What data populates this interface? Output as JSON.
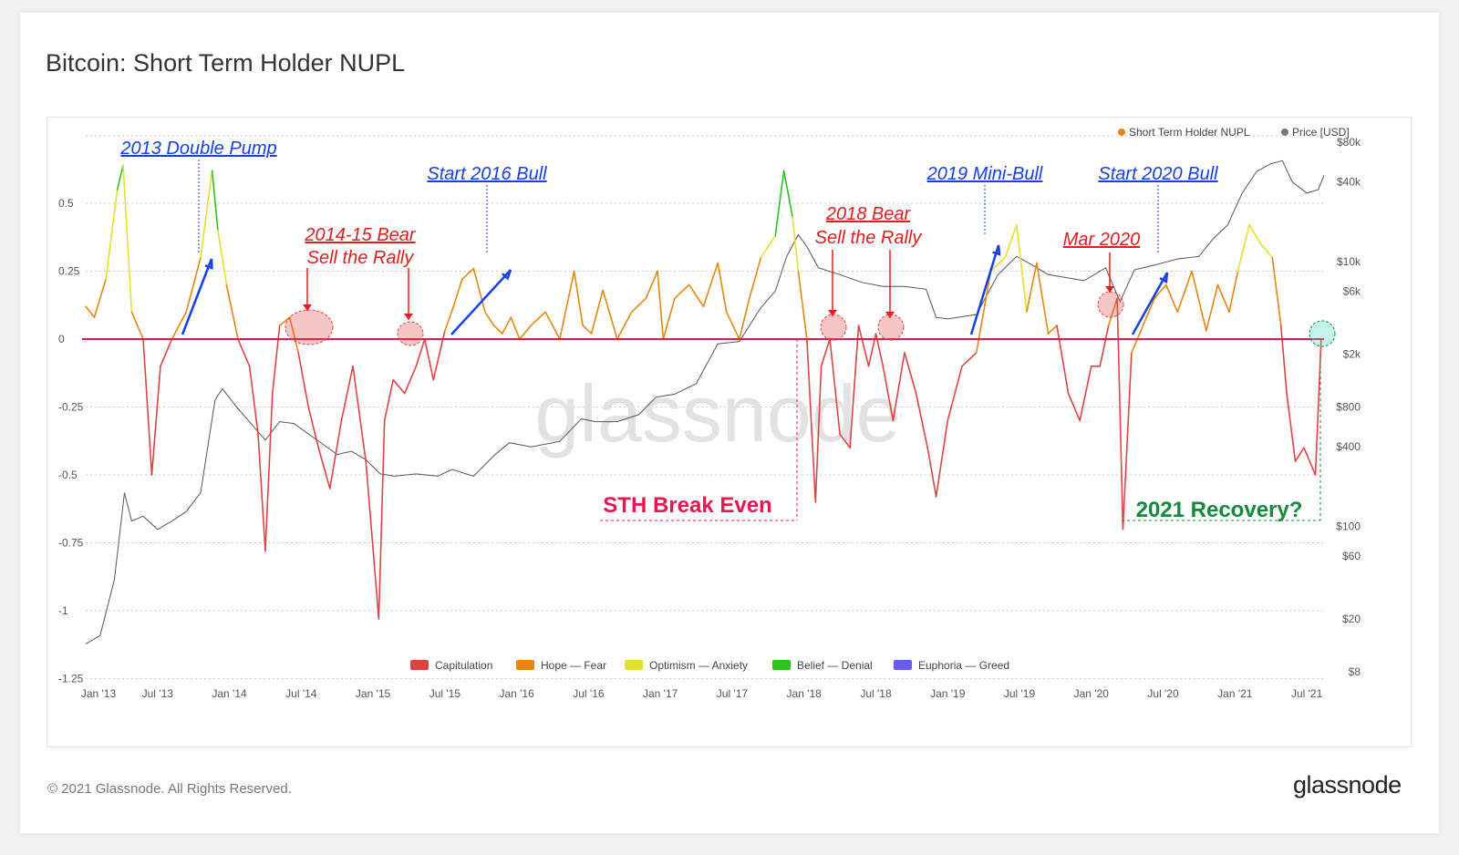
{
  "title": "Bitcoin: Short Term Holder NUPL",
  "footer": "© 2021 Glassnode. All Rights Reserved.",
  "brand": "glassnode",
  "watermark": "glassnode",
  "colors": {
    "capitulation": "#e04343",
    "hope_fear": "#e8870f",
    "optimism_anxiety": "#e2e22a",
    "belief_denial": "#2ec21d",
    "euphoria_greed": "#6a5cf0",
    "price": "#555555",
    "break_even": "#e8174f",
    "blue_annotation": "#1540e8",
    "red_annotation": "#e21d1d",
    "green_annotation": "#158a3c"
  },
  "chart_data": {
    "type": "line",
    "legend_top": [
      "Short Term Holder NUPL",
      "Price [USD]"
    ],
    "legend_bottom": [
      "Capitulation",
      "Hope — Fear",
      "Optimism — Anxiety",
      "Belief — Denial",
      "Euphoria — Greed"
    ],
    "x_ticks": [
      "Jan '13",
      "Jul '13",
      "Jan '14",
      "Jul '14",
      "Jan '15",
      "Jul '15",
      "Jan '16",
      "Jul '16",
      "Jan '17",
      "Jul '17",
      "Jan '18",
      "Jul '18",
      "Jan '19",
      "Jul '19",
      "Jan '20",
      "Jul '20",
      "Jan '21",
      "Jul '21"
    ],
    "y_left_ticks": [
      "0.5",
      "0.25",
      "0",
      "-0.25",
      "-0.5",
      "-0.75",
      "-1",
      "-1.25"
    ],
    "y_right_ticks": [
      "$80k",
      "$40k",
      "$10k",
      "$6k",
      "$2k",
      "$800",
      "$400",
      "$100",
      "$60",
      "$20",
      "$8"
    ],
    "ylim_left": [
      -1.25,
      0.7
    ],
    "ylim_right_log": [
      8,
      80000
    ],
    "x_range": [
      "2013-01",
      "2021-08"
    ],
    "series": [
      {
        "name": "Short Term Holder NUPL",
        "t": [
          2013.0,
          2013.06,
          2013.14,
          2013.22,
          2013.26,
          2013.32,
          2013.4,
          2013.46,
          2013.52,
          2013.6,
          2013.7,
          2013.8,
          2013.88,
          2013.92,
          2013.98,
          2014.06,
          2014.14,
          2014.2,
          2014.25,
          2014.3,
          2014.35,
          2014.42,
          2014.48,
          2014.55,
          2014.62,
          2014.7,
          2014.78,
          2014.86,
          2014.95,
          2015.04,
          2015.08,
          2015.14,
          2015.22,
          2015.3,
          2015.36,
          2015.42,
          2015.5,
          2015.56,
          2015.62,
          2015.7,
          2015.78,
          2015.84,
          2015.9,
          2015.96,
          2016.02,
          2016.1,
          2016.2,
          2016.3,
          2016.4,
          2016.46,
          2016.52,
          2016.6,
          2016.7,
          2016.8,
          2016.9,
          2016.98,
          2017.02,
          2017.1,
          2017.2,
          2017.3,
          2017.4,
          2017.46,
          2017.55,
          2017.62,
          2017.7,
          2017.8,
          2017.86,
          2017.92,
          2017.96,
          2018.02,
          2018.08,
          2018.12,
          2018.18,
          2018.25,
          2018.32,
          2018.38,
          2018.45,
          2018.5,
          2018.55,
          2018.62,
          2018.7,
          2018.78,
          2018.86,
          2018.92,
          2019.0,
          2019.1,
          2019.2,
          2019.3,
          2019.4,
          2019.48,
          2019.55,
          2019.62,
          2019.7,
          2019.76,
          2019.84,
          2019.92,
          2020.0,
          2020.06,
          2020.12,
          2020.18,
          2020.22,
          2020.28,
          2020.36,
          2020.44,
          2020.52,
          2020.6,
          2020.7,
          2020.8,
          2020.88,
          2020.96,
          2021.02,
          2021.1,
          2021.18,
          2021.26,
          2021.32,
          2021.36,
          2021.42,
          2021.48,
          2021.56,
          2021.6
        ],
        "values": [
          0.12,
          0.08,
          0.22,
          0.55,
          0.64,
          0.1,
          0.0,
          -0.5,
          -0.1,
          0.0,
          0.1,
          0.3,
          0.62,
          0.4,
          0.2,
          0.0,
          -0.1,
          -0.35,
          -0.78,
          -0.2,
          0.05,
          0.08,
          -0.05,
          -0.25,
          -0.4,
          -0.55,
          -0.3,
          -0.1,
          -0.45,
          -1.03,
          -0.3,
          -0.15,
          -0.2,
          -0.1,
          0.0,
          -0.15,
          0.03,
          0.12,
          0.22,
          0.26,
          0.1,
          0.05,
          0.02,
          0.08,
          0.0,
          0.05,
          0.1,
          0.0,
          0.25,
          0.05,
          0.02,
          0.18,
          0.0,
          0.1,
          0.15,
          0.25,
          0.0,
          0.15,
          0.2,
          0.12,
          0.28,
          0.1,
          0.0,
          0.15,
          0.3,
          0.38,
          0.62,
          0.45,
          0.25,
          0.0,
          -0.6,
          -0.1,
          0.0,
          -0.35,
          -0.4,
          0.05,
          -0.1,
          0.02,
          -0.1,
          -0.3,
          -0.05,
          -0.2,
          -0.4,
          -0.58,
          -0.3,
          -0.1,
          -0.05,
          0.25,
          0.3,
          0.42,
          0.1,
          0.28,
          0.02,
          0.05,
          -0.2,
          -0.3,
          -0.1,
          -0.1,
          0.05,
          0.15,
          -0.7,
          -0.05,
          0.05,
          0.15,
          0.2,
          0.1,
          0.25,
          0.03,
          0.2,
          0.1,
          0.25,
          0.42,
          0.35,
          0.3,
          0.05,
          -0.2,
          -0.45,
          -0.4,
          -0.5,
          0.0
        ]
      },
      {
        "name": "Price [USD]",
        "t": [
          2013.0,
          2013.1,
          2013.2,
          2013.27,
          2013.32,
          2013.4,
          2013.5,
          2013.6,
          2013.7,
          2013.8,
          2013.9,
          2013.95,
          2014.05,
          2014.15,
          2014.25,
          2014.35,
          2014.45,
          2014.55,
          2014.65,
          2014.75,
          2014.85,
          2014.95,
          2015.05,
          2015.15,
          2015.3,
          2015.45,
          2015.55,
          2015.7,
          2015.85,
          2015.95,
          2016.1,
          2016.3,
          2016.45,
          2016.55,
          2016.7,
          2016.85,
          2016.97,
          2017.1,
          2017.25,
          2017.4,
          2017.55,
          2017.7,
          2017.8,
          2017.88,
          2017.96,
          2018.02,
          2018.1,
          2018.25,
          2018.4,
          2018.55,
          2018.7,
          2018.85,
          2018.92,
          2019.0,
          2019.2,
          2019.35,
          2019.48,
          2019.55,
          2019.7,
          2019.85,
          2019.95,
          2020.1,
          2020.2,
          2020.3,
          2020.45,
          2020.6,
          2020.75,
          2020.85,
          2020.95,
          2021.05,
          2021.15,
          2021.25,
          2021.33,
          2021.4,
          2021.5,
          2021.58,
          2021.62
        ],
        "values": [
          13,
          15,
          40,
          180,
          110,
          120,
          95,
          110,
          130,
          180,
          900,
          1100,
          800,
          600,
          450,
          620,
          600,
          500,
          420,
          350,
          370,
          320,
          250,
          240,
          250,
          240,
          270,
          240,
          350,
          430,
          400,
          440,
          650,
          620,
          620,
          700,
          950,
          1000,
          1200,
          2400,
          2500,
          4500,
          6000,
          11000,
          16000,
          13000,
          9000,
          8000,
          7000,
          6500,
          6500,
          6200,
          3800,
          3700,
          4000,
          8000,
          11000,
          10000,
          8000,
          7500,
          7200,
          9000,
          5000,
          8700,
          9500,
          10500,
          11000,
          15000,
          19000,
          33000,
          48000,
          55000,
          58000,
          40000,
          33000,
          35000,
          45000
        ]
      }
    ],
    "annotations": {
      "double_pump": "2013 Double Pump",
      "start_2016": "Start 2016 Bull",
      "mini_bull_2019": "2019 Mini-Bull",
      "start_2020": "Start 2020 Bull",
      "bear_1415_a": "2014-15 Bear",
      "bear_1415_b": "Sell the Rally",
      "bear_2018_a": "2018 Bear",
      "bear_2018_b": "Sell the Rally",
      "mar_2020": "Mar 2020",
      "break_even": "STH Break Even",
      "recovery_2021": "2021 Recovery?"
    }
  }
}
